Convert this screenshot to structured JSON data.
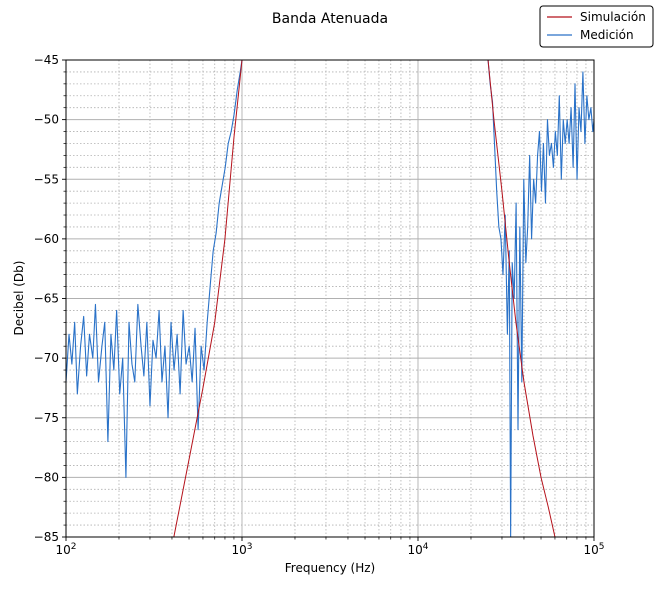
{
  "chart_data": {
    "type": "line",
    "title": "Banda Atenuada",
    "xlabel": "Frequency (Hz)",
    "ylabel": "Decibel (Db)",
    "x_scale": "log",
    "xlim": [
      100,
      100000
    ],
    "ylim": [
      -85,
      -45
    ],
    "x_ticks": [
      {
        "value": 100,
        "base": "10",
        "exp": "2"
      },
      {
        "value": 1000,
        "base": "10",
        "exp": "3"
      },
      {
        "value": 10000,
        "base": "10",
        "exp": "4"
      },
      {
        "value": 100000,
        "base": "10",
        "exp": "5"
      }
    ],
    "y_ticks": [
      {
        "value": -45,
        "label": "−45"
      },
      {
        "value": -50,
        "label": "−50"
      },
      {
        "value": -55,
        "label": "−55"
      },
      {
        "value": -60,
        "label": "−60"
      },
      {
        "value": -65,
        "label": "−65"
      },
      {
        "value": -70,
        "label": "−70"
      },
      {
        "value": -75,
        "label": "−75"
      },
      {
        "value": -80,
        "label": "−80"
      },
      {
        "value": -85,
        "label": "−85"
      }
    ],
    "grid": true,
    "legend_position": "top-right",
    "series": [
      {
        "name": "Simulación",
        "color": "#b5121b",
        "segments": [
          {
            "x": [
              410,
              500,
              600,
              700,
              800,
              900,
              1000
            ],
            "y": [
              -85,
              -78.5,
              -72.5,
              -67,
              -60,
              -51.5,
              -45
            ]
          },
          {
            "x": [
              25000,
              27000,
              30000,
              33000,
              36000,
              40000,
              45000,
              50000,
              55000,
              60000
            ],
            "y": [
              -45,
              -50,
              -56,
              -62,
              -67,
              -72,
              -76.5,
              -80,
              -82.5,
              -85
            ]
          }
        ]
      },
      {
        "name": "Medición",
        "color": "#2a72c8",
        "segments": [
          {
            "x": [
              100,
              104,
              108,
              112,
              116,
              121,
              126,
              131,
              136,
              142,
              147,
              153,
              160,
              166,
              173,
              180,
              187,
              194,
              202,
              210,
              219,
              228,
              237,
              246,
              256,
              267,
              277,
              288,
              300,
              312,
              325,
              338,
              351,
              365,
              380,
              395,
              411,
              428,
              445,
              463,
              481,
              501,
              521,
              541,
              563,
              586,
              609,
              634,
              659,
              686,
              713,
              742,
              772,
              803,
              835,
              868,
              903,
              940,
              977,
              1000
            ],
            "y": [
              -72,
              -68,
              -70.5,
              -67,
              -73,
              -69,
              -66.5,
              -71.5,
              -68,
              -70,
              -65.5,
              -72,
              -69,
              -67,
              -77,
              -68,
              -71,
              -66,
              -73,
              -70,
              -80,
              -67,
              -70.5,
              -72,
              -65.5,
              -69,
              -71.5,
              -67,
              -74,
              -68.5,
              -70,
              -66,
              -72,
              -69,
              -75,
              -67,
              -71,
              -68,
              -73,
              -66,
              -70.5,
              -69,
              -72,
              -67.5,
              -76,
              -69,
              -71,
              -67,
              -64,
              -61,
              -59.5,
              -57,
              -55.5,
              -54,
              -52,
              -51,
              -49.5,
              -47.5,
              -46,
              -45
            ]
          },
          {
            "x": [
              25000,
              25700,
              26500,
              27200,
              28000,
              28800,
              29600,
              30400,
              31300,
              32200,
              33000,
              33600,
              34300,
              35200,
              36100,
              37000,
              37900,
              38900,
              39900,
              41000,
              42000,
              43100,
              44200,
              45400,
              46600,
              47800,
              49000,
              50300,
              51600,
              53000,
              54400,
              55800,
              57300,
              58800,
              60300,
              61900,
              63500,
              65200,
              66900,
              68600,
              70400,
              72200,
              74100,
              76100,
              78000,
              80100,
              82200,
              84300,
              86500,
              88800,
              91100,
              93500,
              96000,
              98500,
              100000
            ],
            "y": [
              -45,
              -47,
              -48.5,
              -52,
              -56,
              -59,
              -60,
              -63,
              -58,
              -68,
              -61,
              -85,
              -62,
              -65,
              -57,
              -76,
              -59,
              -72,
              -55,
              -62,
              -59,
              -53,
              -60,
              -55,
              -57,
              -53,
              -51,
              -56,
              -52,
              -57,
              -50,
              -53,
              -52,
              -54,
              -51,
              -53,
              -48,
              -55,
              -50,
              -52,
              -50,
              -52,
              -49,
              -54,
              -47,
              -55,
              -49,
              -51,
              -46,
              -52,
              -48,
              -50,
              -49,
              -51,
              -50
            ]
          }
        ]
      }
    ]
  }
}
